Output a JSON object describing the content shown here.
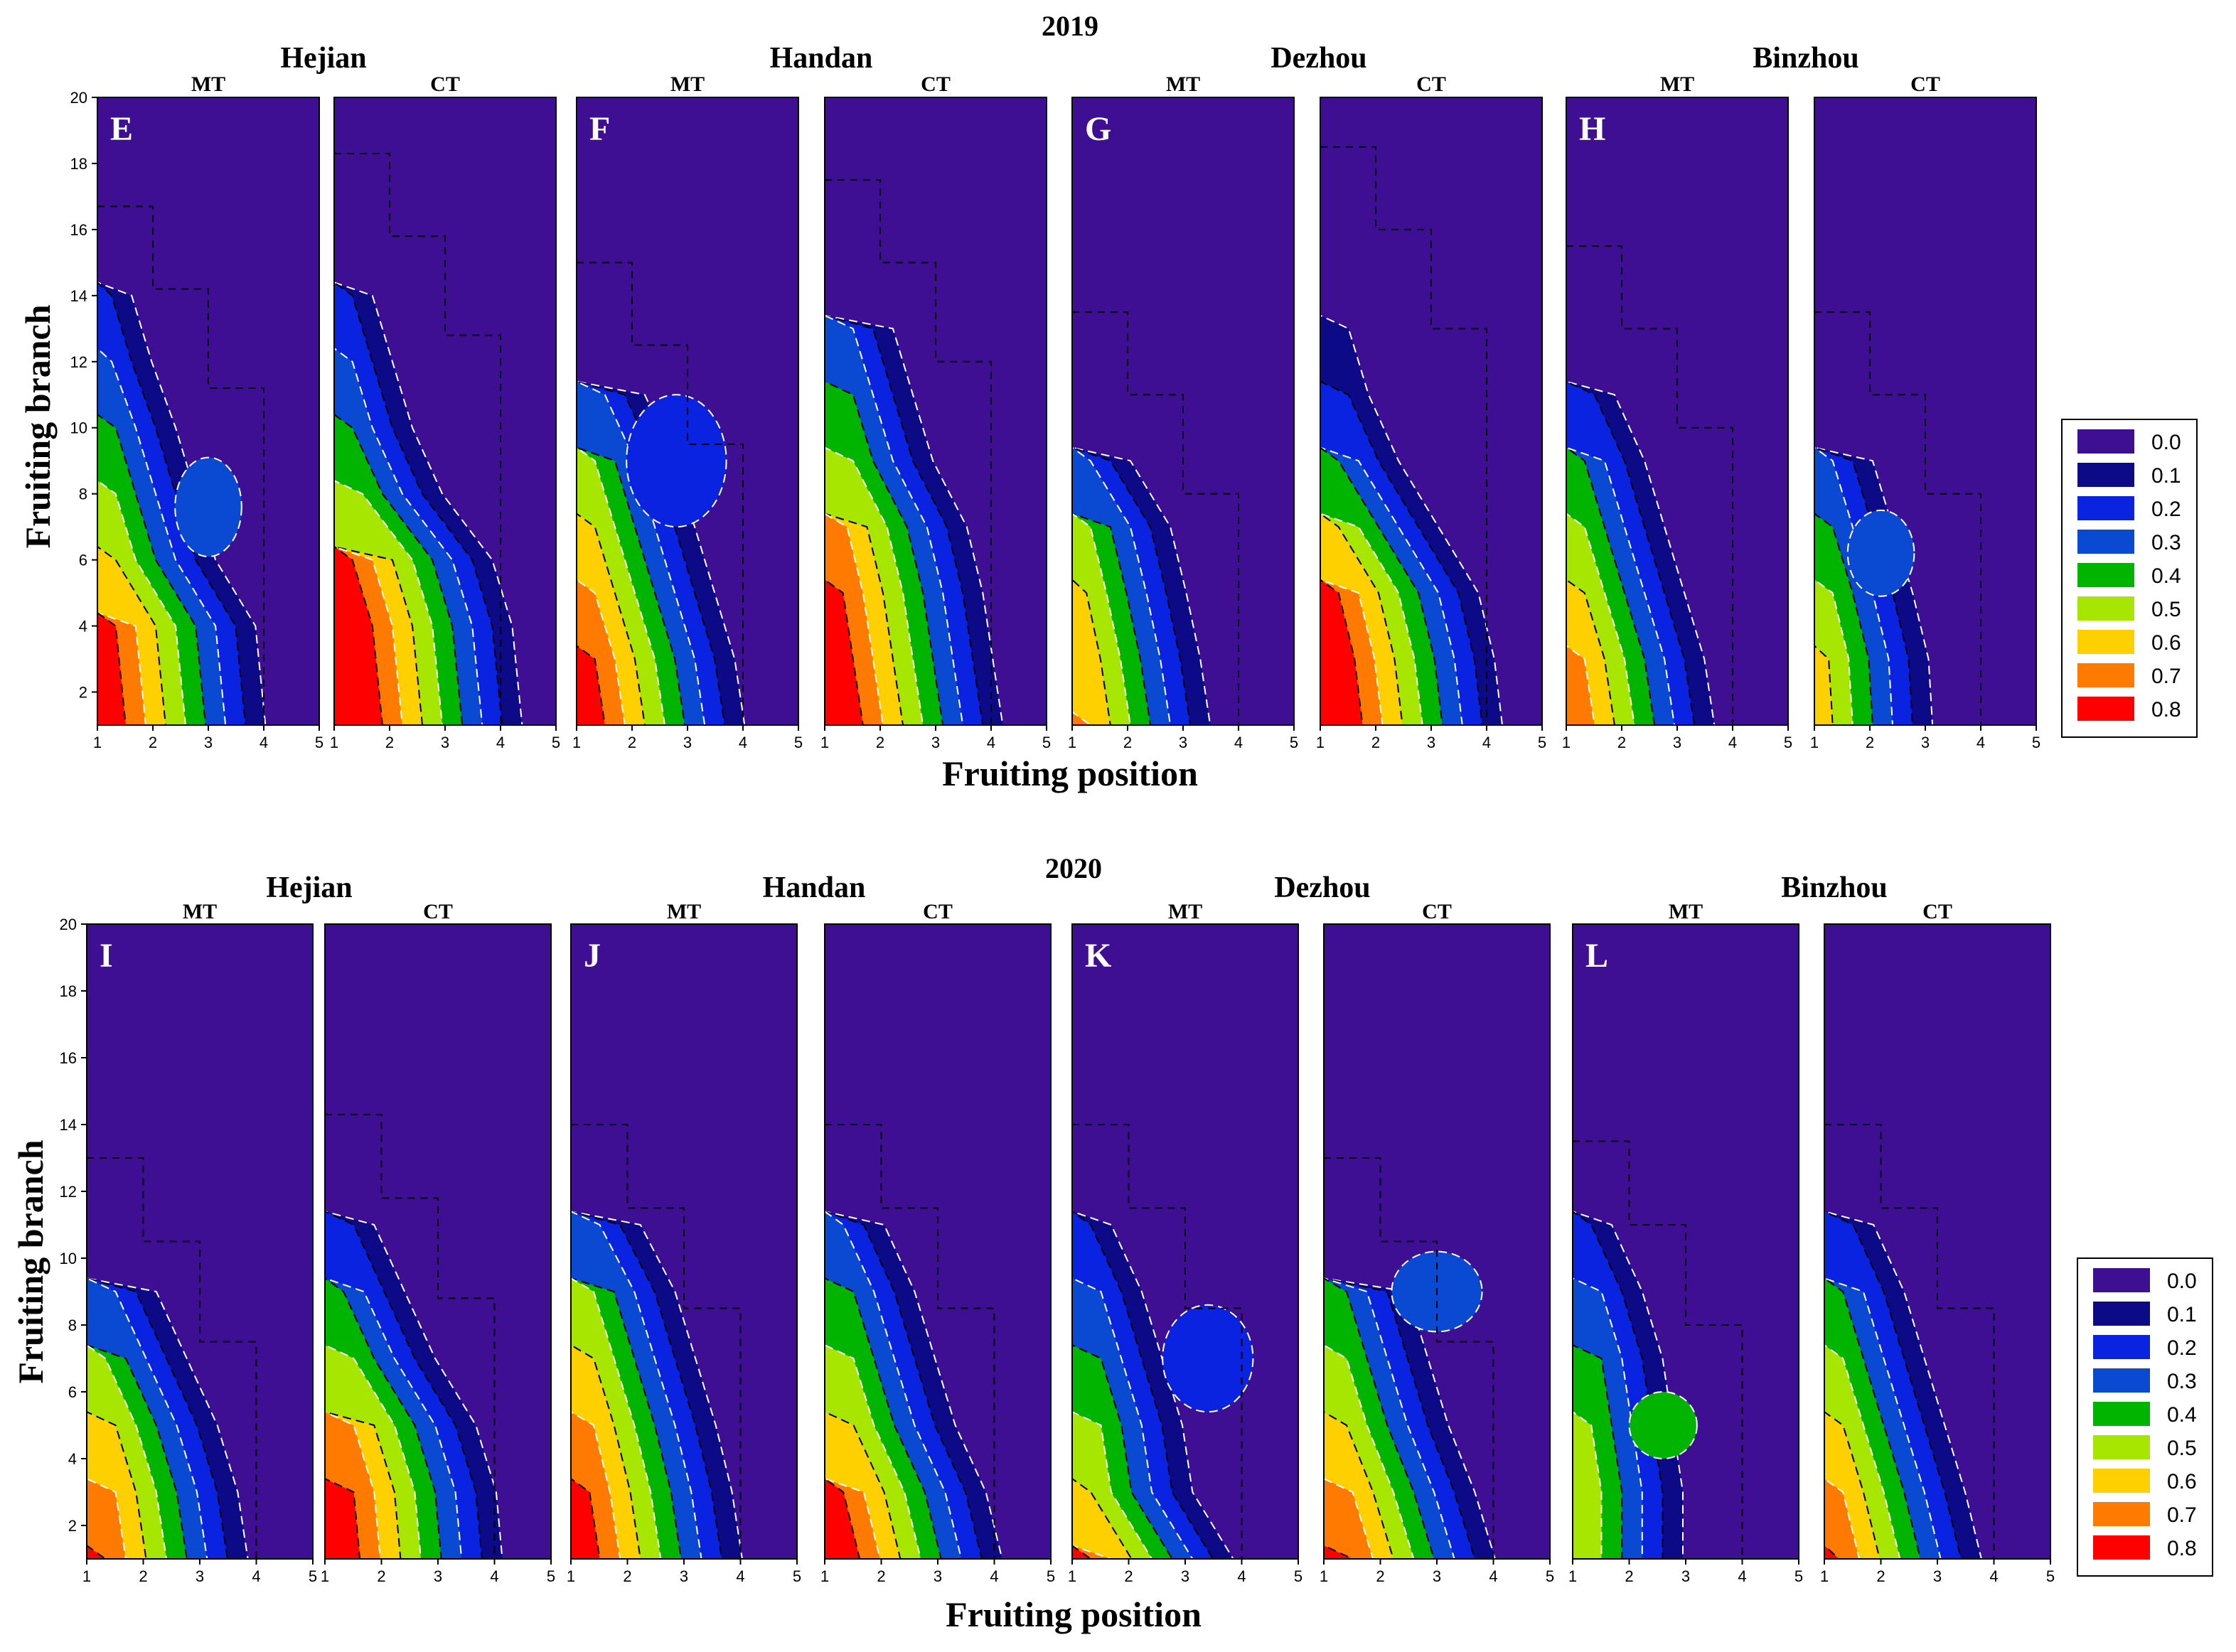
{
  "figure": {
    "x_label": "Fruiting position",
    "y_label": "Fruiting branch"
  },
  "colors": {
    "scale": [
      "#3f0f93",
      "#0c0a86",
      "#0a23e0",
      "#0a4ad2",
      "#00b400",
      "#a6e600",
      "#ffd000",
      "#ff7a00",
      "#ff0000"
    ],
    "dashed_black": "#000000",
    "dashed_white": "#ffffff"
  },
  "chart_data": {
    "type": "heatmap",
    "x_range": [
      1,
      5
    ],
    "y_range": [
      1,
      20
    ],
    "x_ticks": [
      "1",
      "2",
      "3",
      "4",
      "5"
    ],
    "y_ticks": [
      "2",
      "4",
      "6",
      "8",
      "10",
      "12",
      "14",
      "16",
      "18",
      "20"
    ],
    "legend": {
      "labels": [
        "0.0",
        "0.1",
        "0.2",
        "0.3",
        "0.4",
        "0.5",
        "0.6",
        "0.7",
        "0.8"
      ]
    },
    "rows": [
      {
        "year": "2019",
        "sites": [
          "Hejian",
          "Handan",
          "Dezhou",
          "Binzhou"
        ],
        "panels": [
          {
            "letter": "E",
            "site": "Hejian",
            "treatment": "MT",
            "top": 15.2,
            "curve": [
              [
                1,
                0.85
              ],
              [
                4,
                0.8
              ],
              [
                6,
                0.6
              ],
              [
                8,
                0.5
              ],
              [
                10,
                0.4
              ],
              [
                12,
                0.28
              ],
              [
                14,
                0.18
              ],
              [
                15.2,
                0.05
              ]
            ],
            "blob": {
              "x": 3.0,
              "y": 7.6,
              "rx": 0.6,
              "ry": 1.5,
              "v": 0.3
            }
          },
          {
            "letter": "",
            "site": "Hejian",
            "treatment": "CT",
            "top": 16.8,
            "curve": [
              [
                1,
                0.95
              ],
              [
                4,
                0.9
              ],
              [
                6,
                0.8
              ],
              [
                8,
                0.55
              ],
              [
                10,
                0.4
              ],
              [
                12,
                0.3
              ],
              [
                14,
                0.2
              ],
              [
                16.8,
                0.05
              ]
            ],
            "blob": null
          },
          {
            "letter": "F",
            "site": "Handan",
            "treatment": "MT",
            "top": 13.5,
            "curve": [
              [
                1,
                0.85
              ],
              [
                3,
                0.8
              ],
              [
                5,
                0.7
              ],
              [
                7,
                0.6
              ],
              [
                9,
                0.5
              ],
              [
                11,
                0.35
              ],
              [
                13.5,
                0.05
              ]
            ],
            "blob": {
              "x": 2.8,
              "y": 9.0,
              "rx": 0.9,
              "ry": 2.0,
              "v": 0.22
            }
          },
          {
            "letter": "",
            "site": "Handan",
            "treatment": "CT",
            "top": 16.0,
            "curve": [
              [
                1,
                0.9
              ],
              [
                3,
                0.85
              ],
              [
                5,
                0.8
              ],
              [
                7,
                0.72
              ],
              [
                9,
                0.55
              ],
              [
                11,
                0.45
              ],
              [
                13,
                0.35
              ],
              [
                16,
                0.05
              ]
            ],
            "blob": null
          },
          {
            "letter": "G",
            "site": "Dezhou",
            "treatment": "MT",
            "top": 12.0,
            "curve": [
              [
                1,
                0.7
              ],
              [
                3,
                0.65
              ],
              [
                5,
                0.58
              ],
              [
                7,
                0.5
              ],
              [
                9,
                0.3
              ],
              [
                12,
                0.05
              ]
            ],
            "blob": null
          },
          {
            "letter": "",
            "site": "Dezhou",
            "treatment": "CT",
            "top": 17.0,
            "curve": [
              [
                1,
                0.92
              ],
              [
                3,
                0.88
              ],
              [
                5,
                0.8
              ],
              [
                7,
                0.6
              ],
              [
                9,
                0.4
              ],
              [
                11,
                0.25
              ],
              [
                13,
                0.15
              ],
              [
                17,
                0.05
              ]
            ],
            "blob": null
          },
          {
            "letter": "H",
            "site": "Binzhou",
            "treatment": "MT",
            "top": 14.0,
            "curve": [
              [
                1,
                0.75
              ],
              [
                3,
                0.7
              ],
              [
                5,
                0.6
              ],
              [
                7,
                0.5
              ],
              [
                9,
                0.4
              ],
              [
                11,
                0.25
              ],
              [
                14,
                0.05
              ]
            ],
            "blob": null
          },
          {
            "letter": "",
            "site": "Binzhou",
            "treatment": "CT",
            "top": 12.0,
            "curve": [
              [
                1,
                0.6
              ],
              [
                3,
                0.58
              ],
              [
                5,
                0.5
              ],
              [
                7,
                0.4
              ],
              [
                9,
                0.3
              ],
              [
                12,
                0.05
              ]
            ],
            "blob": {
              "x": 2.2,
              "y": 6.2,
              "rx": 0.6,
              "ry": 1.3,
              "v": 0.3
            }
          }
        ]
      },
      {
        "year": "2020",
        "sites": [
          "Hejian",
          "Handan",
          "Dezhou",
          "Binzhou"
        ],
        "panels": [
          {
            "letter": "I",
            "site": "Hejian",
            "treatment": "MT",
            "top": 11.5,
            "curve": [
              [
                1,
                0.8
              ],
              [
                3,
                0.75
              ],
              [
                5,
                0.65
              ],
              [
                7,
                0.5
              ],
              [
                9,
                0.35
              ],
              [
                11.5,
                0.05
              ]
            ],
            "blob": null
          },
          {
            "letter": "",
            "site": "Hejian",
            "treatment": "CT",
            "top": 12.8,
            "curve": [
              [
                1,
                0.88
              ],
              [
                3,
                0.85
              ],
              [
                5,
                0.75
              ],
              [
                7,
                0.55
              ],
              [
                9,
                0.4
              ],
              [
                11,
                0.25
              ],
              [
                12.8,
                0.05
              ]
            ],
            "blob": null
          },
          {
            "letter": "J",
            "site": "Handan",
            "treatment": "MT",
            "top": 12.5,
            "curve": [
              [
                1,
                0.85
              ],
              [
                3,
                0.8
              ],
              [
                5,
                0.72
              ],
              [
                7,
                0.62
              ],
              [
                9,
                0.52
              ],
              [
                11,
                0.35
              ],
              [
                12.5,
                0.05
              ]
            ],
            "blob": null
          },
          {
            "letter": "",
            "site": "Handan",
            "treatment": "CT",
            "top": 12.5,
            "curve": [
              [
                1,
                0.88
              ],
              [
                3,
                0.8
              ],
              [
                5,
                0.65
              ],
              [
                7,
                0.55
              ],
              [
                9,
                0.45
              ],
              [
                11,
                0.3
              ],
              [
                12.5,
                0.05
              ]
            ],
            "blob": null
          },
          {
            "letter": "K",
            "site": "Dezhou",
            "treatment": "MT",
            "top": 12.5,
            "curve": [
              [
                1,
                0.8
              ],
              [
                3,
                0.6
              ],
              [
                5,
                0.55
              ],
              [
                7,
                0.45
              ],
              [
                9,
                0.35
              ],
              [
                11,
                0.2
              ],
              [
                12.5,
                0.05
              ]
            ],
            "blob": {
              "x": 3.4,
              "y": 7.0,
              "rx": 0.8,
              "ry": 1.6,
              "v": 0.22
            }
          },
          {
            "letter": "",
            "site": "Dezhou",
            "treatment": "CT",
            "top": 11.5,
            "curve": [
              [
                1,
                0.85
              ],
              [
                3,
                0.75
              ],
              [
                5,
                0.62
              ],
              [
                7,
                0.52
              ],
              [
                9,
                0.42
              ],
              [
                11.5,
                0.05
              ]
            ],
            "blob": {
              "x": 3.0,
              "y": 9.0,
              "rx": 0.8,
              "ry": 1.2,
              "v": 0.3
            }
          },
          {
            "letter": "L",
            "site": "Binzhou",
            "treatment": "MT",
            "top": 12.0,
            "curve": [
              [
                1,
                0.55
              ],
              [
                3,
                0.55
              ],
              [
                5,
                0.5
              ],
              [
                7,
                0.45
              ],
              [
                9,
                0.35
              ],
              [
                11,
                0.2
              ],
              [
                12,
                0.05
              ]
            ],
            "blob": {
              "x": 2.6,
              "y": 5.0,
              "rx": 0.6,
              "ry": 1.0,
              "v": 0.4
            }
          },
          {
            "letter": "",
            "site": "Binzhou",
            "treatment": "CT",
            "top": 12.5,
            "curve": [
              [
                1,
                0.78
              ],
              [
                3,
                0.7
              ],
              [
                5,
                0.6
              ],
              [
                7,
                0.5
              ],
              [
                9,
                0.4
              ],
              [
                11,
                0.25
              ],
              [
                12.5,
                0.05
              ]
            ],
            "blob": null
          }
        ]
      }
    ]
  }
}
